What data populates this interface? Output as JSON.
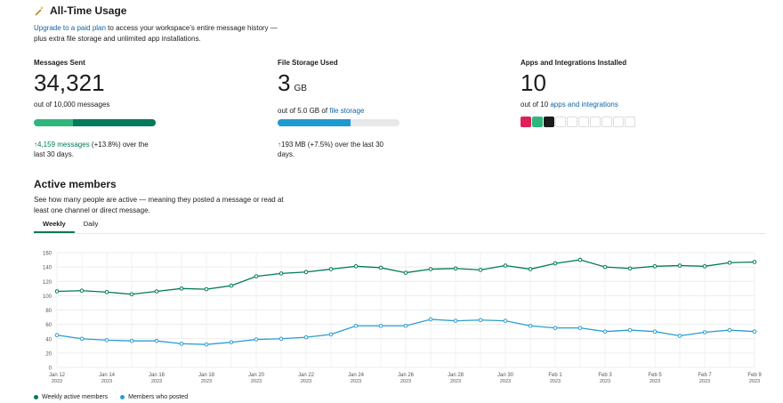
{
  "header": {
    "title": "All-Time Usage",
    "icon": "magic-wand-icon"
  },
  "intro": {
    "link": "Upgrade to a paid plan",
    "rest": " to access your workspace’s entire message history — plus extra file storage and unlimited app installations."
  },
  "stats": {
    "messages": {
      "label": "Messages Sent",
      "value": "34,321",
      "sub": "out of 10,000 messages",
      "trend_value": "4,159 messages",
      "trend_pct": " (+13.8%)",
      "trend_rest": " over the last 30 days.",
      "bar_colors": [
        "#2eb67d",
        "#007a5a"
      ],
      "bar_split": 0.32
    },
    "storage": {
      "label": "File Storage Used",
      "value": "3",
      "unit": "GB",
      "sub_prefix": "out of 5.0 GB of ",
      "sub_link": "file storage",
      "trend_value": "193 MB",
      "trend_pct": " (+7.5%)",
      "trend_rest": " over the last 30 days.",
      "bar_color": "#1d9bd1",
      "bar_fill": 0.6
    },
    "apps": {
      "label": "Apps and Integrations Installed",
      "value": "10",
      "sub_prefix": "out of 10 ",
      "sub_link": "apps and integrations",
      "filled_slots": 3,
      "total_slots": 10
    }
  },
  "active_members": {
    "title": "Active members",
    "desc": "See how many people are active — meaning they posted a message or read at least one channel or direct message.",
    "tabs": [
      "Weekly",
      "Daily"
    ],
    "active_tab": 0
  },
  "chart_data": {
    "type": "line",
    "x": [
      "Jan 12",
      "Jan 13",
      "Jan 14",
      "Jan 15",
      "Jan 16",
      "Jan 17",
      "Jan 18",
      "Jan 19",
      "Jan 20",
      "Jan 21",
      "Jan 22",
      "Jan 23",
      "Jan 24",
      "Jan 25",
      "Jan 26",
      "Jan 27",
      "Jan 28",
      "Jan 29",
      "Jan 30",
      "Jan 31",
      "Feb 1",
      "Feb 2",
      "Feb 3",
      "Feb 4",
      "Feb 5",
      "Feb 6",
      "Feb 7",
      "Feb 8",
      "Feb 9"
    ],
    "tick_labels": [
      "Jan 12",
      "Jan 14",
      "Jan 16",
      "Jan 18",
      "Jan 20",
      "Jan 22",
      "Jan 24",
      "Jan 26",
      "Jan 28",
      "Jan 30",
      "Feb 1",
      "Feb 3",
      "Feb 5",
      "Feb 7",
      "Feb 9"
    ],
    "tick_year": "2023",
    "yticks": [
      0,
      20,
      40,
      60,
      80,
      100,
      120,
      140,
      160
    ],
    "ylim": [
      0,
      160
    ],
    "grid": true,
    "series": [
      {
        "name": "Weekly active members",
        "color": "#007a5a",
        "values": [
          106,
          107,
          105,
          102,
          106,
          110,
          109,
          114,
          127,
          131,
          133,
          137,
          141,
          139,
          132,
          137,
          138,
          136,
          142,
          137,
          145,
          150,
          140,
          138,
          141,
          142,
          141,
          146,
          147
        ]
      },
      {
        "name": "Members who posted",
        "color": "#2c9dd1",
        "values": [
          45,
          40,
          38,
          37,
          37,
          33,
          32,
          35,
          39,
          40,
          42,
          46,
          58,
          58,
          58,
          67,
          65,
          66,
          65,
          58,
          55,
          55,
          50,
          52,
          50,
          44,
          49,
          52,
          50
        ]
      }
    ]
  }
}
